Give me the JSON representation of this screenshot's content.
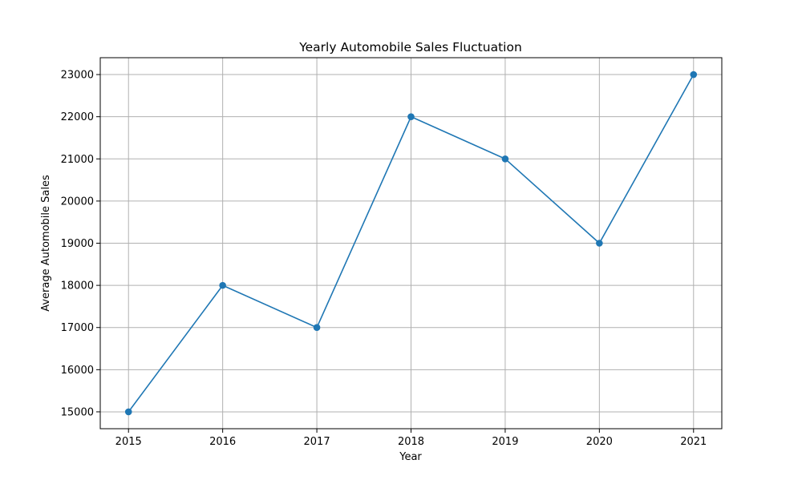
{
  "chart_data": {
    "type": "line",
    "title": "Yearly Automobile Sales Fluctuation",
    "xlabel": "Year",
    "ylabel": "Average Automobile Sales",
    "x": [
      "2015",
      "2016",
      "2017",
      "2018",
      "2019",
      "2020",
      "2021"
    ],
    "series": [
      {
        "values": [
          15000,
          18000,
          17000,
          22000,
          21000,
          19000,
          23000
        ],
        "color": "#1f77b4",
        "marker": "circle"
      }
    ],
    "yticks": [
      "15000",
      "16000",
      "17000",
      "18000",
      "19000",
      "20000",
      "21000",
      "22000",
      "23000"
    ],
    "xlim": [
      2014.7,
      2021.3
    ],
    "ylim": [
      14600,
      23400
    ],
    "grid": true,
    "grid_color": "#b0b0b0",
    "legend": false
  }
}
